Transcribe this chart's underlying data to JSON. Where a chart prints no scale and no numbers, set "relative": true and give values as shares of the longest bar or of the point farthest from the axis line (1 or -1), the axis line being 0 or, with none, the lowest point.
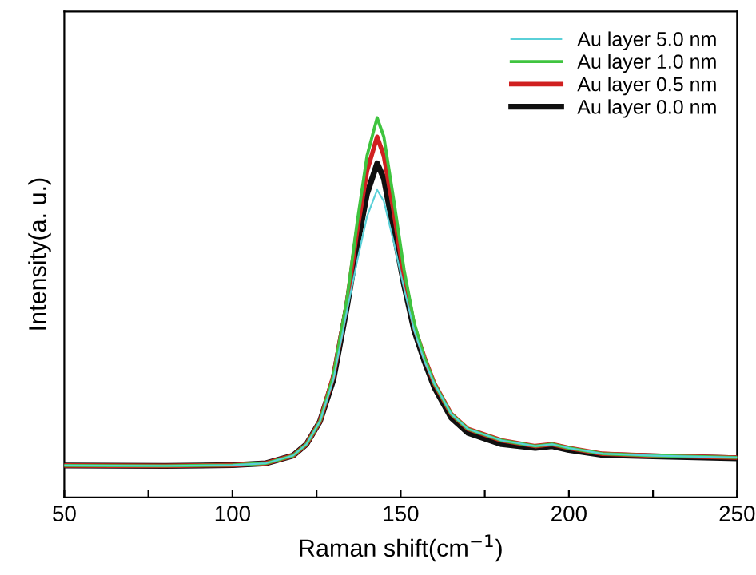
{
  "chart_data": {
    "type": "line",
    "relative": true,
    "xlabel": "Raman shift(cm$^{−1}$)",
    "ylabel": "Intensity(a. u.)",
    "xlim": [
      50,
      250
    ],
    "xticks": [
      50,
      {
        "value": 75,
        "label": null
      },
      100,
      {
        "value": 125,
        "label": null
      },
      150,
      {
        "value": 175,
        "label": null
      },
      200,
      {
        "value": 225,
        "label": null
      },
      250
    ],
    "grid": false,
    "legend": "top right",
    "marker": "none",
    "line_style": "solid",
    "x": [
      50,
      80,
      100,
      110,
      118,
      122,
      126,
      130,
      134,
      137,
      140,
      143,
      145,
      148,
      151,
      154,
      157,
      160,
      165,
      170,
      180,
      190,
      195,
      200,
      210,
      225,
      250
    ],
    "series": [
      {
        "name": "Au layer 5.0 nm",
        "color": "#5ad0d8",
        "values": [
          0.084,
          0.083,
          0.085,
          0.09,
          0.11,
          0.14,
          0.2,
          0.31,
          0.49,
          0.62,
          0.74,
          0.81,
          0.78,
          0.67,
          0.55,
          0.44,
          0.36,
          0.3,
          0.22,
          0.18,
          0.15,
          0.135,
          0.14,
          0.13,
          0.115,
          0.11,
          0.105
        ]
      },
      {
        "name": "Au layer 1.0 nm",
        "color": "#3fc43f",
        "values": [
          0.084,
          0.083,
          0.085,
          0.09,
          0.11,
          0.14,
          0.2,
          0.32,
          0.52,
          0.72,
          0.9,
          1.0,
          0.95,
          0.78,
          0.6,
          0.46,
          0.37,
          0.3,
          0.22,
          0.18,
          0.15,
          0.135,
          0.14,
          0.13,
          0.115,
          0.11,
          0.105
        ]
      },
      {
        "name": "Au layer 0.5 nm",
        "color": "#d02020",
        "values": [
          0.084,
          0.083,
          0.085,
          0.09,
          0.11,
          0.14,
          0.2,
          0.32,
          0.51,
          0.7,
          0.86,
          0.95,
          0.9,
          0.75,
          0.58,
          0.45,
          0.37,
          0.3,
          0.22,
          0.18,
          0.15,
          0.135,
          0.14,
          0.13,
          0.115,
          0.11,
          0.105
        ]
      },
      {
        "name": "Au layer 0.0 nm",
        "color": "#101010",
        "values": [
          0.084,
          0.083,
          0.085,
          0.09,
          0.11,
          0.14,
          0.2,
          0.31,
          0.5,
          0.66,
          0.8,
          0.88,
          0.84,
          0.7,
          0.56,
          0.44,
          0.36,
          0.29,
          0.21,
          0.17,
          0.14,
          0.13,
          0.135,
          0.125,
          0.112,
          0.108,
          0.103
        ]
      }
    ]
  }
}
